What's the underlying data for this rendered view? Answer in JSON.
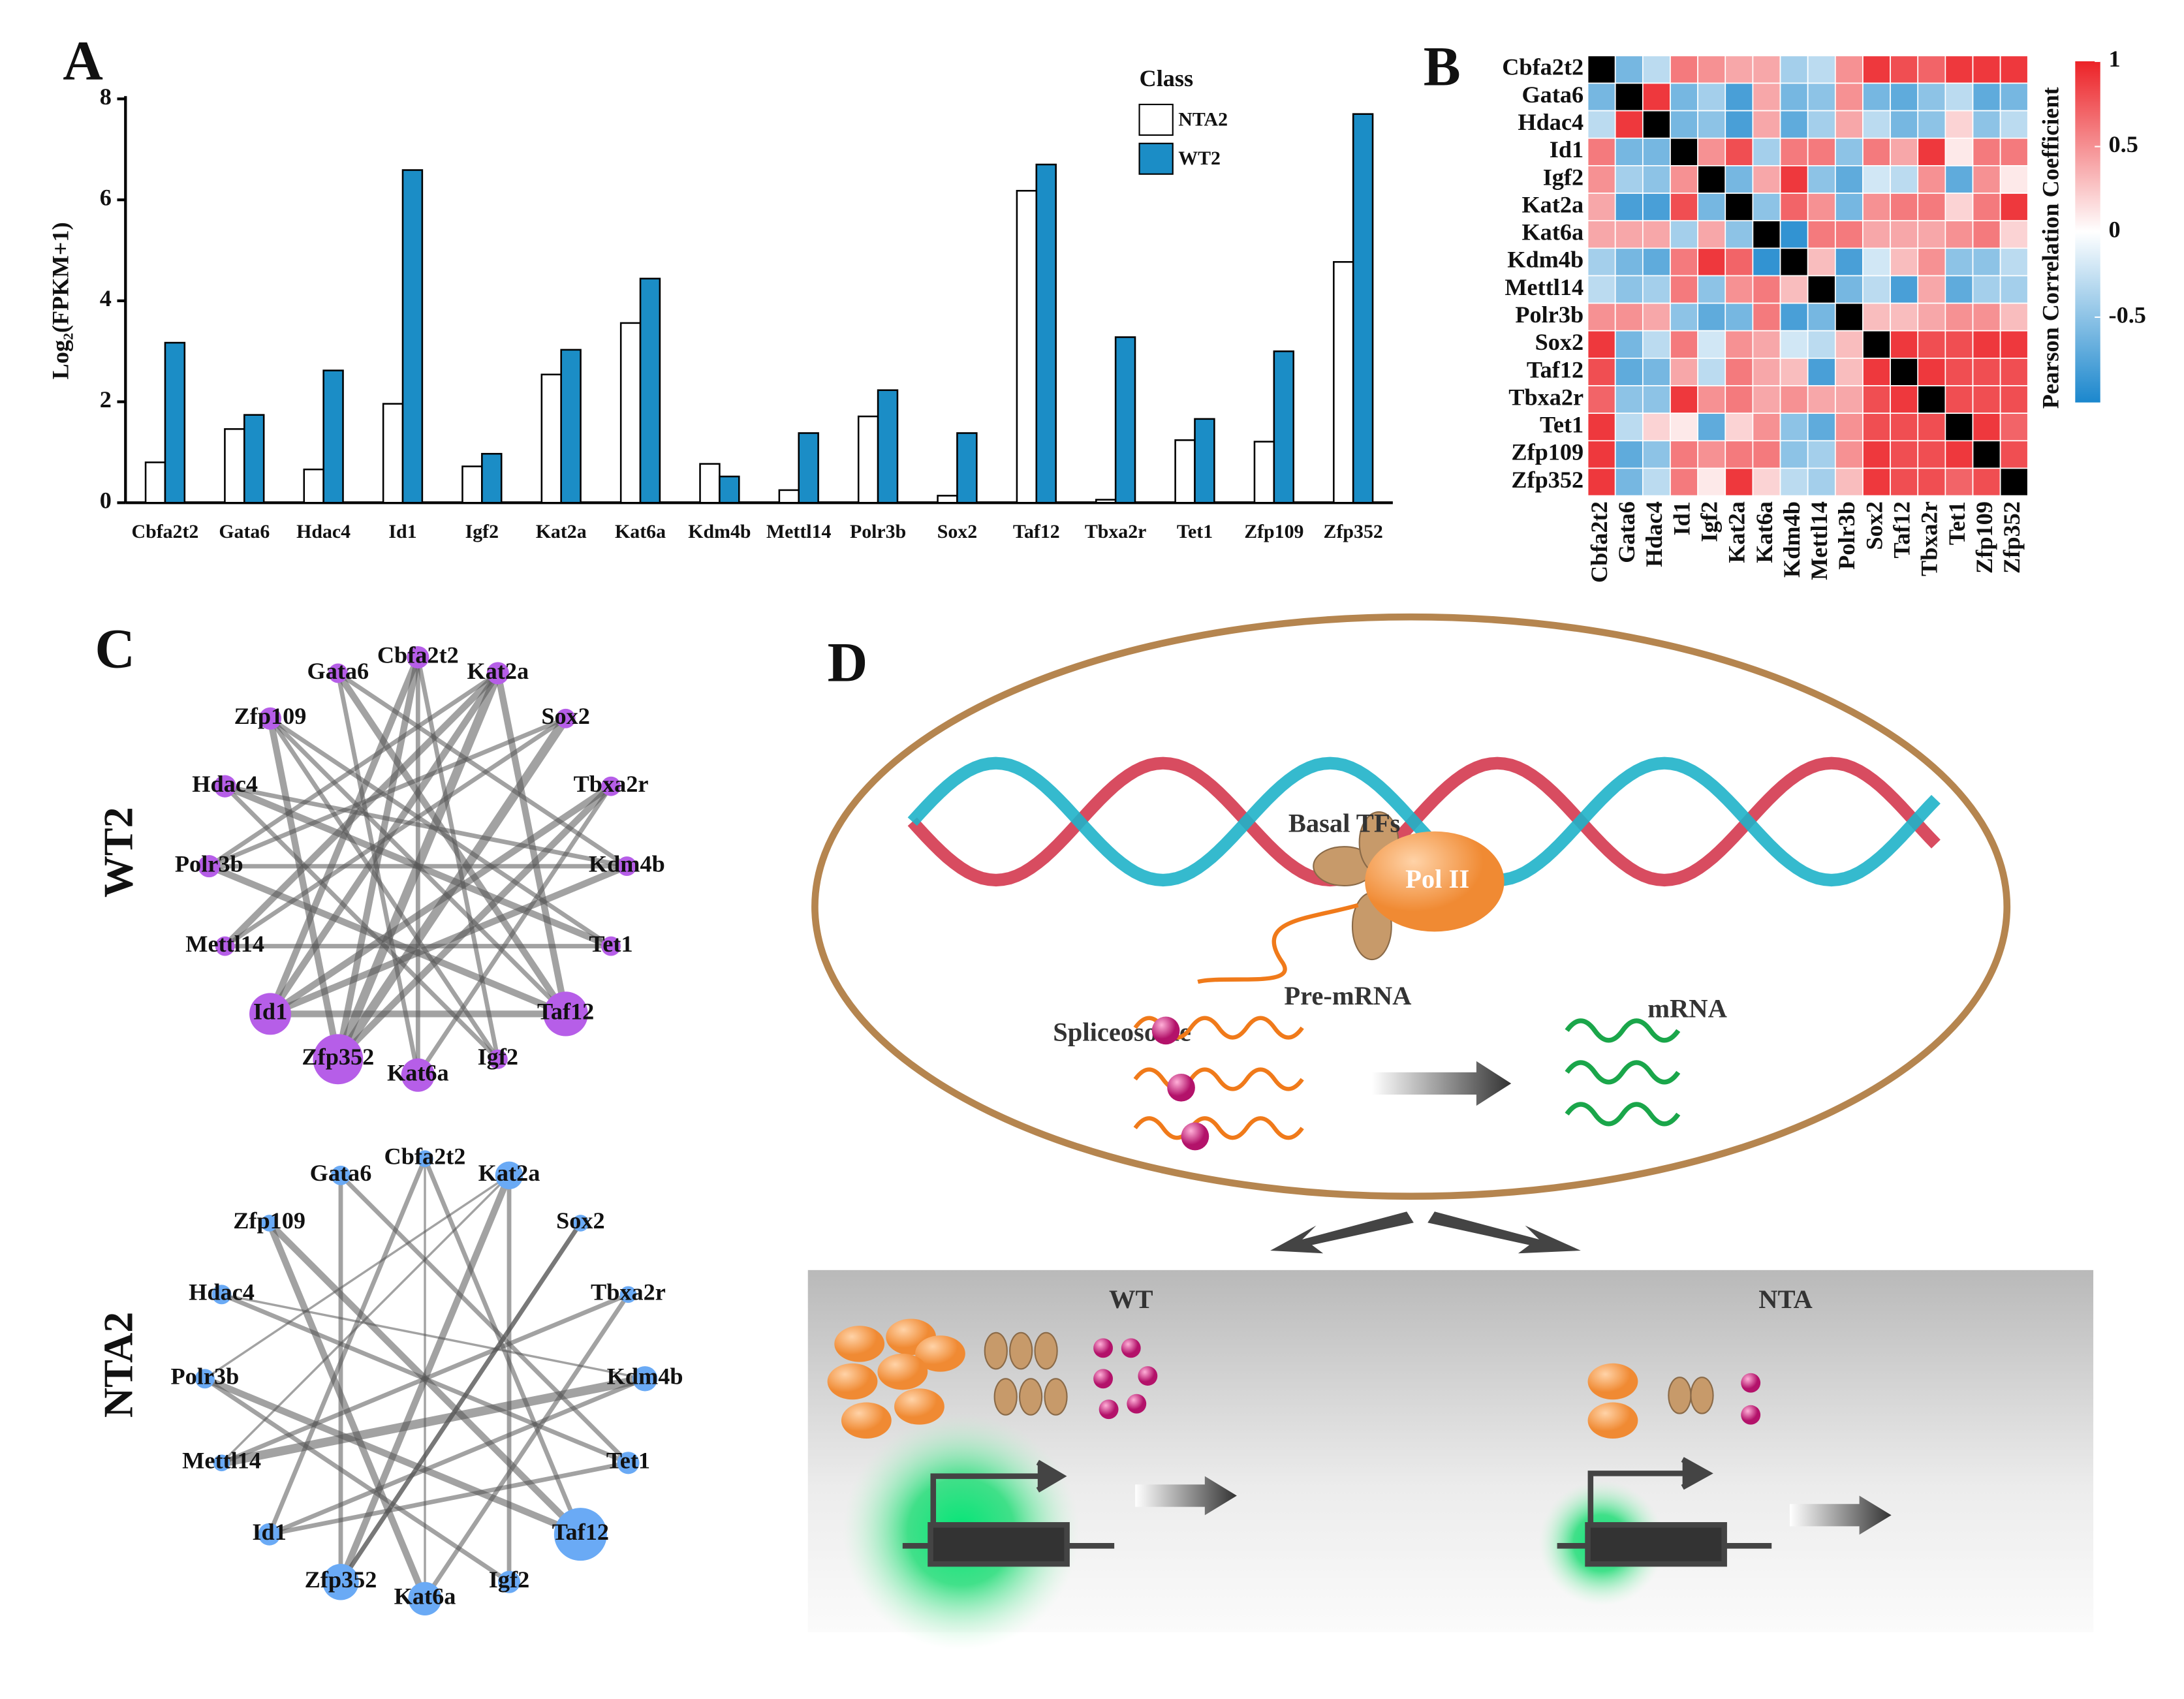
{
  "panel_labels": [
    "A",
    "B",
    "C",
    "D"
  ],
  "chart_data": [
    {
      "type": "bar",
      "y_label": "Log₂(FPKM+1)",
      "legend_title": "Class",
      "legend_position": "top-right",
      "categories": [
        "Cbfa2t2",
        "Gata6",
        "Hdac4",
        "Id1",
        "Igf2",
        "Kat2a",
        "Kat6a",
        "Kdm4b",
        "Mettl14",
        "Polr3b",
        "Sox2",
        "Taf12",
        "Tbxa2r",
        "Tet1",
        "Zfp109",
        "Zfp352"
      ],
      "series": [
        {
          "name": "NTA2",
          "color": "#ffffff",
          "values": [
            0.8,
            1.46,
            0.66,
            1.96,
            0.72,
            2.54,
            3.56,
            0.77,
            0.25,
            1.71,
            0.14,
            6.18,
            0.06,
            1.24,
            1.21,
            4.77
          ]
        },
        {
          "name": "WT2",
          "color": "#1b8dc6",
          "values": [
            3.17,
            1.74,
            2.62,
            6.59,
            0.97,
            3.03,
            4.44,
            0.52,
            1.38,
            2.23,
            1.38,
            6.7,
            3.28,
            1.66,
            3.0,
            7.7
          ]
        }
      ],
      "ylim": [
        0,
        8
      ],
      "yticks": [
        0,
        2,
        4,
        6,
        8
      ]
    },
    {
      "type": "heatmap",
      "x_categories": [
        "Cbfa2t2",
        "Gata6",
        "Hdac4",
        "Id1",
        "Igf2",
        "Kat2a",
        "Kat6a",
        "Kdm4b",
        "Mettl14",
        "Polr3b",
        "Sox2",
        "Taf12",
        "Tbxa2r",
        "Tet1",
        "Zfp109",
        "Zfp352"
      ],
      "y_categories": [
        "Cbfa2t2",
        "Gata6",
        "Hdac4",
        "Id1",
        "Igf2",
        "Kat2a",
        "Kat6a",
        "Kdm4b",
        "Mettl14",
        "Polr3b",
        "Sox2",
        "Taf12",
        "Tbxa2r",
        "Tet1",
        "Zfp109",
        "Zfp352"
      ],
      "values": [
        [
          1,
          -0.6,
          -0.3,
          0.6,
          0.5,
          0.4,
          0.4,
          -0.4,
          -0.3,
          0.5,
          0.9,
          0.8,
          0.7,
          0.9,
          0.9,
          0.9
        ],
        [
          -0.6,
          1,
          0.9,
          -0.6,
          -0.4,
          -0.8,
          0.4,
          -0.6,
          -0.5,
          0.5,
          -0.6,
          -0.7,
          -0.5,
          -0.3,
          -0.7,
          -0.6
        ],
        [
          -0.3,
          0.9,
          1,
          -0.6,
          -0.5,
          -0.8,
          0.4,
          -0.7,
          -0.4,
          0.4,
          -0.3,
          -0.6,
          -0.5,
          0.2,
          -0.5,
          -0.3
        ],
        [
          0.6,
          -0.6,
          -0.6,
          1,
          0.5,
          0.8,
          -0.4,
          0.6,
          0.6,
          -0.5,
          0.6,
          0.4,
          0.9,
          0.1,
          0.6,
          0.6
        ],
        [
          0.5,
          -0.4,
          -0.5,
          0.5,
          1,
          -0.6,
          0.4,
          0.9,
          -0.5,
          -0.7,
          -0.2,
          -0.3,
          0.5,
          -0.7,
          0.5,
          0.1
        ],
        [
          0.4,
          -0.8,
          -0.8,
          0.8,
          -0.6,
          1,
          -0.5,
          0.7,
          0.5,
          -0.6,
          0.5,
          0.6,
          0.6,
          0.2,
          0.6,
          0.9
        ],
        [
          0.4,
          0.4,
          0.4,
          -0.4,
          0.4,
          -0.5,
          1,
          -0.9,
          0.6,
          0.6,
          0.4,
          0.4,
          0.4,
          0.5,
          0.6,
          0.2
        ],
        [
          -0.4,
          -0.6,
          -0.7,
          0.6,
          0.9,
          0.7,
          -0.9,
          1,
          0.3,
          -0.8,
          -0.2,
          0.3,
          0.5,
          -0.5,
          -0.5,
          -0.3
        ],
        [
          -0.3,
          -0.5,
          -0.4,
          0.6,
          -0.5,
          0.5,
          0.6,
          0.3,
          1,
          -0.6,
          -0.3,
          -0.8,
          0.4,
          -0.7,
          -0.4,
          -0.4
        ],
        [
          0.5,
          0.5,
          0.4,
          -0.5,
          -0.7,
          -0.6,
          0.6,
          -0.8,
          -0.6,
          1,
          0.3,
          0.3,
          0.4,
          0.5,
          0.5,
          0.3
        ],
        [
          0.9,
          -0.6,
          -0.3,
          0.6,
          -0.2,
          0.5,
          0.4,
          -0.2,
          -0.3,
          0.3,
          1,
          0.9,
          0.8,
          0.8,
          0.9,
          0.9
        ],
        [
          0.8,
          -0.7,
          -0.6,
          0.4,
          -0.3,
          0.6,
          0.4,
          0.3,
          -0.8,
          0.3,
          0.9,
          1,
          0.9,
          0.8,
          0.8,
          0.8
        ],
        [
          0.7,
          -0.5,
          -0.5,
          0.9,
          0.5,
          0.6,
          0.4,
          0.5,
          0.4,
          0.4,
          0.8,
          0.9,
          1,
          0.8,
          0.8,
          0.8
        ],
        [
          0.9,
          -0.3,
          0.2,
          0.1,
          -0.7,
          0.2,
          0.5,
          -0.5,
          -0.7,
          0.5,
          0.8,
          0.8,
          0.8,
          1,
          0.9,
          0.7
        ],
        [
          0.9,
          -0.7,
          -0.5,
          0.6,
          0.5,
          0.6,
          0.6,
          -0.5,
          -0.4,
          0.5,
          0.9,
          0.8,
          0.8,
          0.9,
          1,
          0.8
        ],
        [
          0.9,
          -0.6,
          -0.3,
          0.6,
          0.1,
          0.9,
          0.2,
          -0.3,
          -0.4,
          0.3,
          0.9,
          0.8,
          0.8,
          0.7,
          0.8,
          1
        ]
      ],
      "colorbar_title": "Pearson Correlation Coefficient",
      "colorbar_lim": [
        -1,
        1
      ],
      "colorbar_ticks": [
        1,
        0.5,
        0,
        -0.5
      ],
      "colors": [
        "#1b87cd",
        "#ffffff",
        "#ec2227"
      ],
      "diagonal_color": "#000000"
    }
  ],
  "networks": [
    {
      "title": "WT2",
      "color": "#b65ee8",
      "nodes": [
        {
          "label": "Cbfa2t2",
          "size": 8
        },
        {
          "label": "Kat2a",
          "size": 8
        },
        {
          "label": "Sox2",
          "size": 7
        },
        {
          "label": "Tbxa2r",
          "size": 7
        },
        {
          "label": "Kdm4b",
          "size": 7
        },
        {
          "label": "Tet1",
          "size": 7
        },
        {
          "label": "Taf12",
          "size": 16
        },
        {
          "label": "Igf2",
          "size": 7
        },
        {
          "label": "Kat6a",
          "size": 12
        },
        {
          "label": "Zfp352",
          "size": 18
        },
        {
          "label": "Id1",
          "size": 15
        },
        {
          "label": "Mettl14",
          "size": 7
        },
        {
          "label": "Polr3b",
          "size": 8
        },
        {
          "label": "Hdac4",
          "size": 8
        },
        {
          "label": "Zfp109",
          "size": 8
        },
        {
          "label": "Gata6",
          "size": 7
        }
      ],
      "edges": [
        {
          "source": "Id1",
          "target": "Taf12",
          "weight": 3
        },
        {
          "source": "Zfp352",
          "target": "Kat2a",
          "weight": 4
        },
        {
          "source": "Id1",
          "target": "Kat2a",
          "weight": 3
        },
        {
          "source": "Zfp352",
          "target": "Tbxa2r",
          "weight": 3
        },
        {
          "source": "Hdac4",
          "target": "Kdm4b",
          "weight": 2
        },
        {
          "source": "Gata6",
          "target": "Taf12",
          "weight": 3
        },
        {
          "source": "Zfp109",
          "target": "Tet1",
          "weight": 2
        },
        {
          "source": "Polr3b",
          "target": "Sox2",
          "weight": 2
        },
        {
          "source": "Mettl14",
          "target": "Kat2a",
          "weight": 3
        },
        {
          "source": "Cbfa2t2",
          "target": "Kat6a",
          "weight": 2
        },
        {
          "source": "Cbfa2t2",
          "target": "Zfp352",
          "weight": 3
        },
        {
          "source": "Kat6a",
          "target": "Gata6",
          "weight": 2
        },
        {
          "source": "Igf2",
          "target": "Hdac4",
          "weight": 2
        },
        {
          "source": "Taf12",
          "target": "Polr3b",
          "weight": 3
        },
        {
          "source": "Tet1",
          "target": "Mettl14",
          "weight": 2
        },
        {
          "source": "Kdm4b",
          "target": "Id1",
          "weight": 3
        },
        {
          "source": "Sox2",
          "target": "Zfp352",
          "weight": 4
        },
        {
          "source": "Tbxa2r",
          "target": "Id1",
          "weight": 3
        },
        {
          "source": "Zfp109",
          "target": "Taf12",
          "weight": 2
        },
        {
          "source": "Gata6",
          "target": "Kdm4b",
          "weight": 2
        },
        {
          "source": "Cbfa2t2",
          "target": "Igf2",
          "weight": 2
        },
        {
          "source": "Kat2a",
          "target": "Polr3b",
          "weight": 2
        },
        {
          "source": "Hdac4",
          "target": "Tet1",
          "weight": 3
        },
        {
          "source": "Mettl14",
          "target": "Sox2",
          "weight": 2
        },
        {
          "source": "Kat6a",
          "target": "Tbxa2r",
          "weight": 2
        },
        {
          "source": "Zfp352",
          "target": "Zfp109",
          "weight": 3
        },
        {
          "source": "Id1",
          "target": "Cbfa2t2",
          "weight": 3
        },
        {
          "source": "Taf12",
          "target": "Kat2a",
          "weight": 3
        },
        {
          "source": "Igf2",
          "target": "Zfp109",
          "weight": 2
        },
        {
          "source": "Polr3b",
          "target": "Kdm4b",
          "weight": 2
        }
      ]
    },
    {
      "title": "NTA2",
      "color": "#6aaaf5",
      "nodes": [
        {
          "label": "Cbfa2t2",
          "size": 6
        },
        {
          "label": "Kat2a",
          "size": 10
        },
        {
          "label": "Sox2",
          "size": 6
        },
        {
          "label": "Tbxa2r",
          "size": 6
        },
        {
          "label": "Kdm4b",
          "size": 9
        },
        {
          "label": "Tet1",
          "size": 8
        },
        {
          "label": "Taf12",
          "size": 19
        },
        {
          "label": "Igf2",
          "size": 8
        },
        {
          "label": "Kat6a",
          "size": 12
        },
        {
          "label": "Zfp352",
          "size": 13
        },
        {
          "label": "Id1",
          "size": 8
        },
        {
          "label": "Mettl14",
          "size": 6
        },
        {
          "label": "Polr3b",
          "size": 7
        },
        {
          "label": "Hdac4",
          "size": 7
        },
        {
          "label": "Zfp109",
          "size": 6
        },
        {
          "label": "Gata6",
          "size": 7
        }
      ],
      "edges": [
        {
          "source": "Mettl14",
          "target": "Kdm4b",
          "weight": 4
        },
        {
          "source": "Zfp352",
          "target": "Kat2a",
          "weight": 3
        },
        {
          "source": "Polr3b",
          "target": "Taf12",
          "weight": 3
        },
        {
          "source": "Zfp109",
          "target": "Kat6a",
          "weight": 3
        },
        {
          "source": "Gata6",
          "target": "Zfp352",
          "weight": 2
        },
        {
          "source": "Hdac4",
          "target": "Tet1",
          "weight": 2
        },
        {
          "source": "Cbfa2t2",
          "target": "Kat6a",
          "weight": 1
        },
        {
          "source": "Kat2a",
          "target": "Igf2",
          "weight": 2
        },
        {
          "source": "Id1",
          "target": "Kdm4b",
          "weight": 2
        },
        {
          "source": "Sox2",
          "target": "Zfp352",
          "weight": 2
        },
        {
          "source": "Tbxa2r",
          "target": "Mettl14",
          "weight": 2
        },
        {
          "source": "Taf12",
          "target": "Zfp109",
          "weight": 3
        },
        {
          "source": "Igf2",
          "target": "Polr3b",
          "weight": 2
        },
        {
          "source": "Kat6a",
          "target": "Tbxa2r",
          "weight": 2
        },
        {
          "source": "Hdac4",
          "target": "Kdm4b",
          "weight": 1
        },
        {
          "source": "Cbfa2t2",
          "target": "Id1",
          "weight": 2
        },
        {
          "source": "Gata6",
          "target": "Tet1",
          "weight": 2
        },
        {
          "source": "Zfp352",
          "target": "Sox2",
          "weight": 2
        },
        {
          "source": "Kat2a",
          "target": "Mettl14",
          "weight": 1
        },
        {
          "source": "Taf12",
          "target": "Cbfa2t2",
          "weight": 2
        },
        {
          "source": "Polr3b",
          "target": "Kat2a",
          "weight": 1
        },
        {
          "source": "Id1",
          "target": "Tet1",
          "weight": 2
        }
      ]
    }
  ],
  "diagram": {
    "basal_tfs": "Basal TFs",
    "pol2": "Pol II",
    "pre_mrna": "Pre-mRNA",
    "spliceosome": "Spliceosome",
    "mrna": "mRNA",
    "wt": "WT",
    "nta": "NTA"
  }
}
